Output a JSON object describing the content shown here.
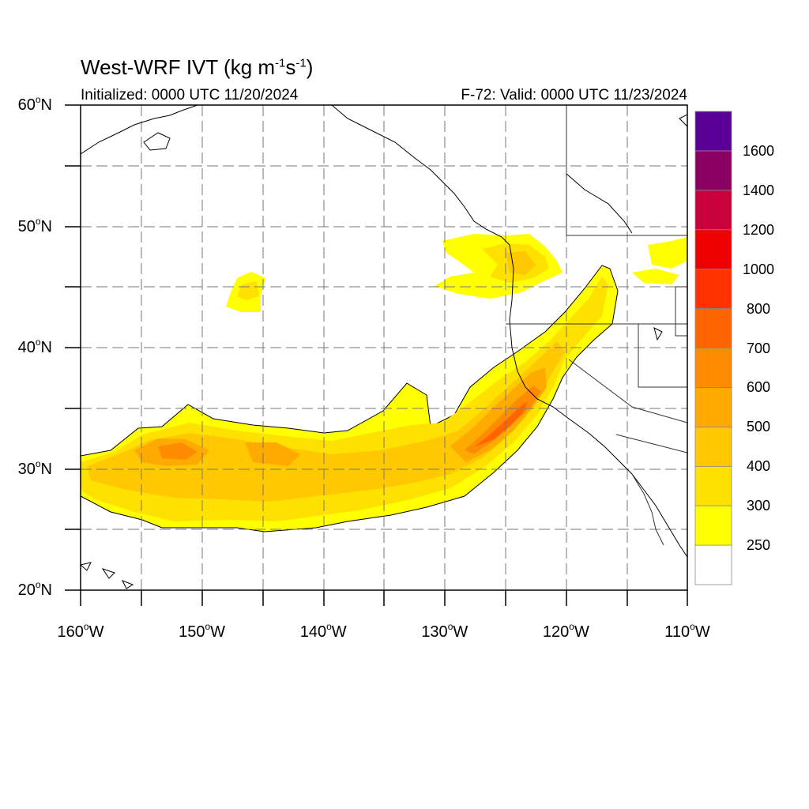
{
  "title": {
    "text": "West-WRF IVT (kg m",
    "sup1": "-1",
    "mid": "s",
    "sup2": "-1",
    "end": ")"
  },
  "initialized_text": "Initialized: 0000 UTC 11/20/2024",
  "valid_text": "F-72: Valid: 0000 UTC 11/23/2024",
  "lat_labels": [
    {
      "value": 60,
      "text": "60",
      "suffix": "N"
    },
    {
      "value": 50,
      "text": "50",
      "suffix": "N"
    },
    {
      "value": 40,
      "text": "40",
      "suffix": "N"
    },
    {
      "value": 30,
      "text": "30",
      "suffix": "N"
    },
    {
      "value": 20,
      "text": "20",
      "suffix": "N"
    }
  ],
  "lon_labels": [
    {
      "value": -160,
      "text": "160",
      "suffix": "W"
    },
    {
      "value": -150,
      "text": "150",
      "suffix": "W"
    },
    {
      "value": -140,
      "text": "140",
      "suffix": "W"
    },
    {
      "value": -130,
      "text": "130",
      "suffix": "W"
    },
    {
      "value": -120,
      "text": "120",
      "suffix": "W"
    },
    {
      "value": -110,
      "text": "110",
      "suffix": "W"
    }
  ],
  "colorbar": {
    "labels": [
      "250",
      "300",
      "400",
      "500",
      "600",
      "700",
      "800",
      "1000",
      "1200",
      "1400",
      "1600"
    ],
    "colors": [
      "#ffffff",
      "#ffff00",
      "#ffe100",
      "#ffc800",
      "#ffaa00",
      "#ff8c00",
      "#ff6400",
      "#ff3200",
      "#ee0000",
      "#c8003c",
      "#8c0064",
      "#5a0096"
    ]
  },
  "colors": {
    "ivt_250": "#ffff00",
    "ivt_300": "#ffe100",
    "ivt_400": "#ffc800",
    "ivt_500": "#ffaa00",
    "ivt_600": "#ff8c00",
    "ivt_700": "#ff6400",
    "ivt_800": "#ff3200"
  }
}
